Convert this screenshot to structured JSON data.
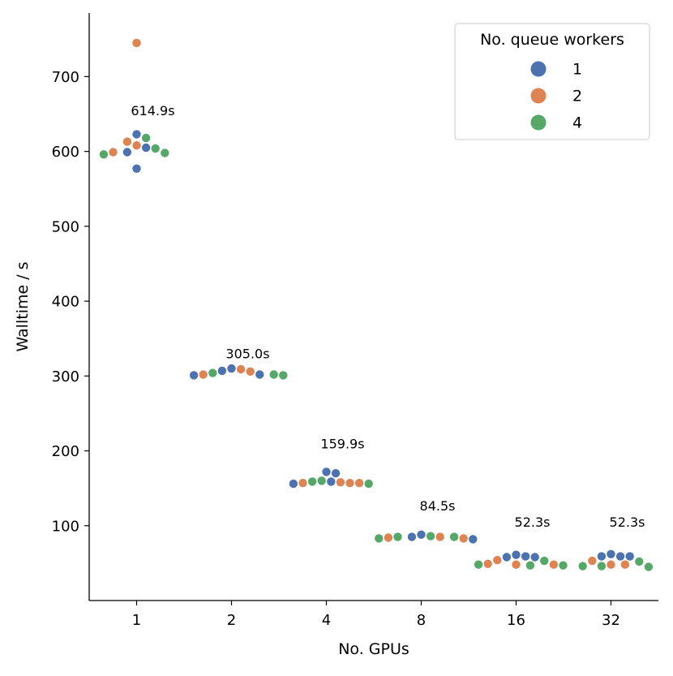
{
  "chart_data": {
    "type": "scatter",
    "subtype": "swarm",
    "xlabel": "No. GPUs",
    "ylabel": "Walltime / s",
    "categories": [
      "1",
      "2",
      "4",
      "8",
      "16",
      "32"
    ],
    "ylim": [
      0,
      785
    ],
    "yticks": [
      "100",
      "200",
      "300",
      "400",
      "500",
      "600",
      "700"
    ],
    "grid": false,
    "legend": {
      "title": "No. queue workers",
      "placement": "top-right",
      "entries": [
        {
          "label": "1",
          "color": "#4c72b0"
        },
        {
          "label": "2",
          "color": "#dd8452"
        },
        {
          "label": "4",
          "color": "#55a868"
        }
      ]
    },
    "annotations": [
      "614.9s",
      "305.0s",
      "159.9s",
      "84.5s",
      "52.3s",
      "52.3s"
    ],
    "series": [
      {
        "name": "1",
        "color": "#4c72b0",
        "points": [
          {
            "x": "1",
            "y": 605
          },
          {
            "x": "1",
            "y": 623
          },
          {
            "x": "1",
            "y": 577
          },
          {
            "x": "1",
            "y": 599
          },
          {
            "x": "2",
            "y": 310
          },
          {
            "x": "2",
            "y": 301
          },
          {
            "x": "2",
            "y": 302
          },
          {
            "x": "2",
            "y": 307
          },
          {
            "x": "4",
            "y": 156
          },
          {
            "x": "4",
            "y": 170
          },
          {
            "x": "4",
            "y": 172
          },
          {
            "x": "4",
            "y": 159
          },
          {
            "x": "8",
            "y": 82
          },
          {
            "x": "8",
            "y": 85
          },
          {
            "x": "8",
            "y": 88
          },
          {
            "x": "16",
            "y": 61
          },
          {
            "x": "16",
            "y": 58
          },
          {
            "x": "16",
            "y": 58
          },
          {
            "x": "16",
            "y": 59
          },
          {
            "x": "32",
            "y": 62
          },
          {
            "x": "32",
            "y": 59
          },
          {
            "x": "32",
            "y": 59
          },
          {
            "x": "32",
            "y": 59
          }
        ]
      },
      {
        "name": "2",
        "color": "#dd8452",
        "points": [
          {
            "x": "1",
            "y": 745
          },
          {
            "x": "1",
            "y": 613
          },
          {
            "x": "1",
            "y": 608
          },
          {
            "x": "1",
            "y": 599
          },
          {
            "x": "2",
            "y": 302
          },
          {
            "x": "2",
            "y": 306
          },
          {
            "x": "2",
            "y": 309
          },
          {
            "x": "4",
            "y": 158
          },
          {
            "x": "4",
            "y": 157
          },
          {
            "x": "4",
            "y": 157
          },
          {
            "x": "4",
            "y": 157
          },
          {
            "x": "8",
            "y": 84
          },
          {
            "x": "8",
            "y": 83
          },
          {
            "x": "8",
            "y": 85
          },
          {
            "x": "16",
            "y": 48
          },
          {
            "x": "16",
            "y": 48
          },
          {
            "x": "16",
            "y": 49
          },
          {
            "x": "16",
            "y": 54
          },
          {
            "x": "32",
            "y": 48
          },
          {
            "x": "32",
            "y": 48
          },
          {
            "x": "32",
            "y": 53
          }
        ]
      },
      {
        "name": "4",
        "color": "#55a868",
        "points": [
          {
            "x": "1",
            "y": 604
          },
          {
            "x": "1",
            "y": 598
          },
          {
            "x": "1",
            "y": 596
          },
          {
            "x": "1",
            "y": 618
          },
          {
            "x": "2",
            "y": 304
          },
          {
            "x": "2",
            "y": 302
          },
          {
            "x": "2",
            "y": 301
          },
          {
            "x": "4",
            "y": 159
          },
          {
            "x": "4",
            "y": 156
          },
          {
            "x": "4",
            "y": 160
          },
          {
            "x": "8",
            "y": 86
          },
          {
            "x": "8",
            "y": 85
          },
          {
            "x": "8",
            "y": 83
          },
          {
            "x": "8",
            "y": 85
          },
          {
            "x": "16",
            "y": 53
          },
          {
            "x": "16",
            "y": 48
          },
          {
            "x": "16",
            "y": 47
          },
          {
            "x": "16",
            "y": 47
          },
          {
            "x": "32",
            "y": 52
          },
          {
            "x": "32",
            "y": 46
          },
          {
            "x": "32",
            "y": 45
          },
          {
            "x": "32",
            "y": 46
          }
        ]
      }
    ]
  }
}
